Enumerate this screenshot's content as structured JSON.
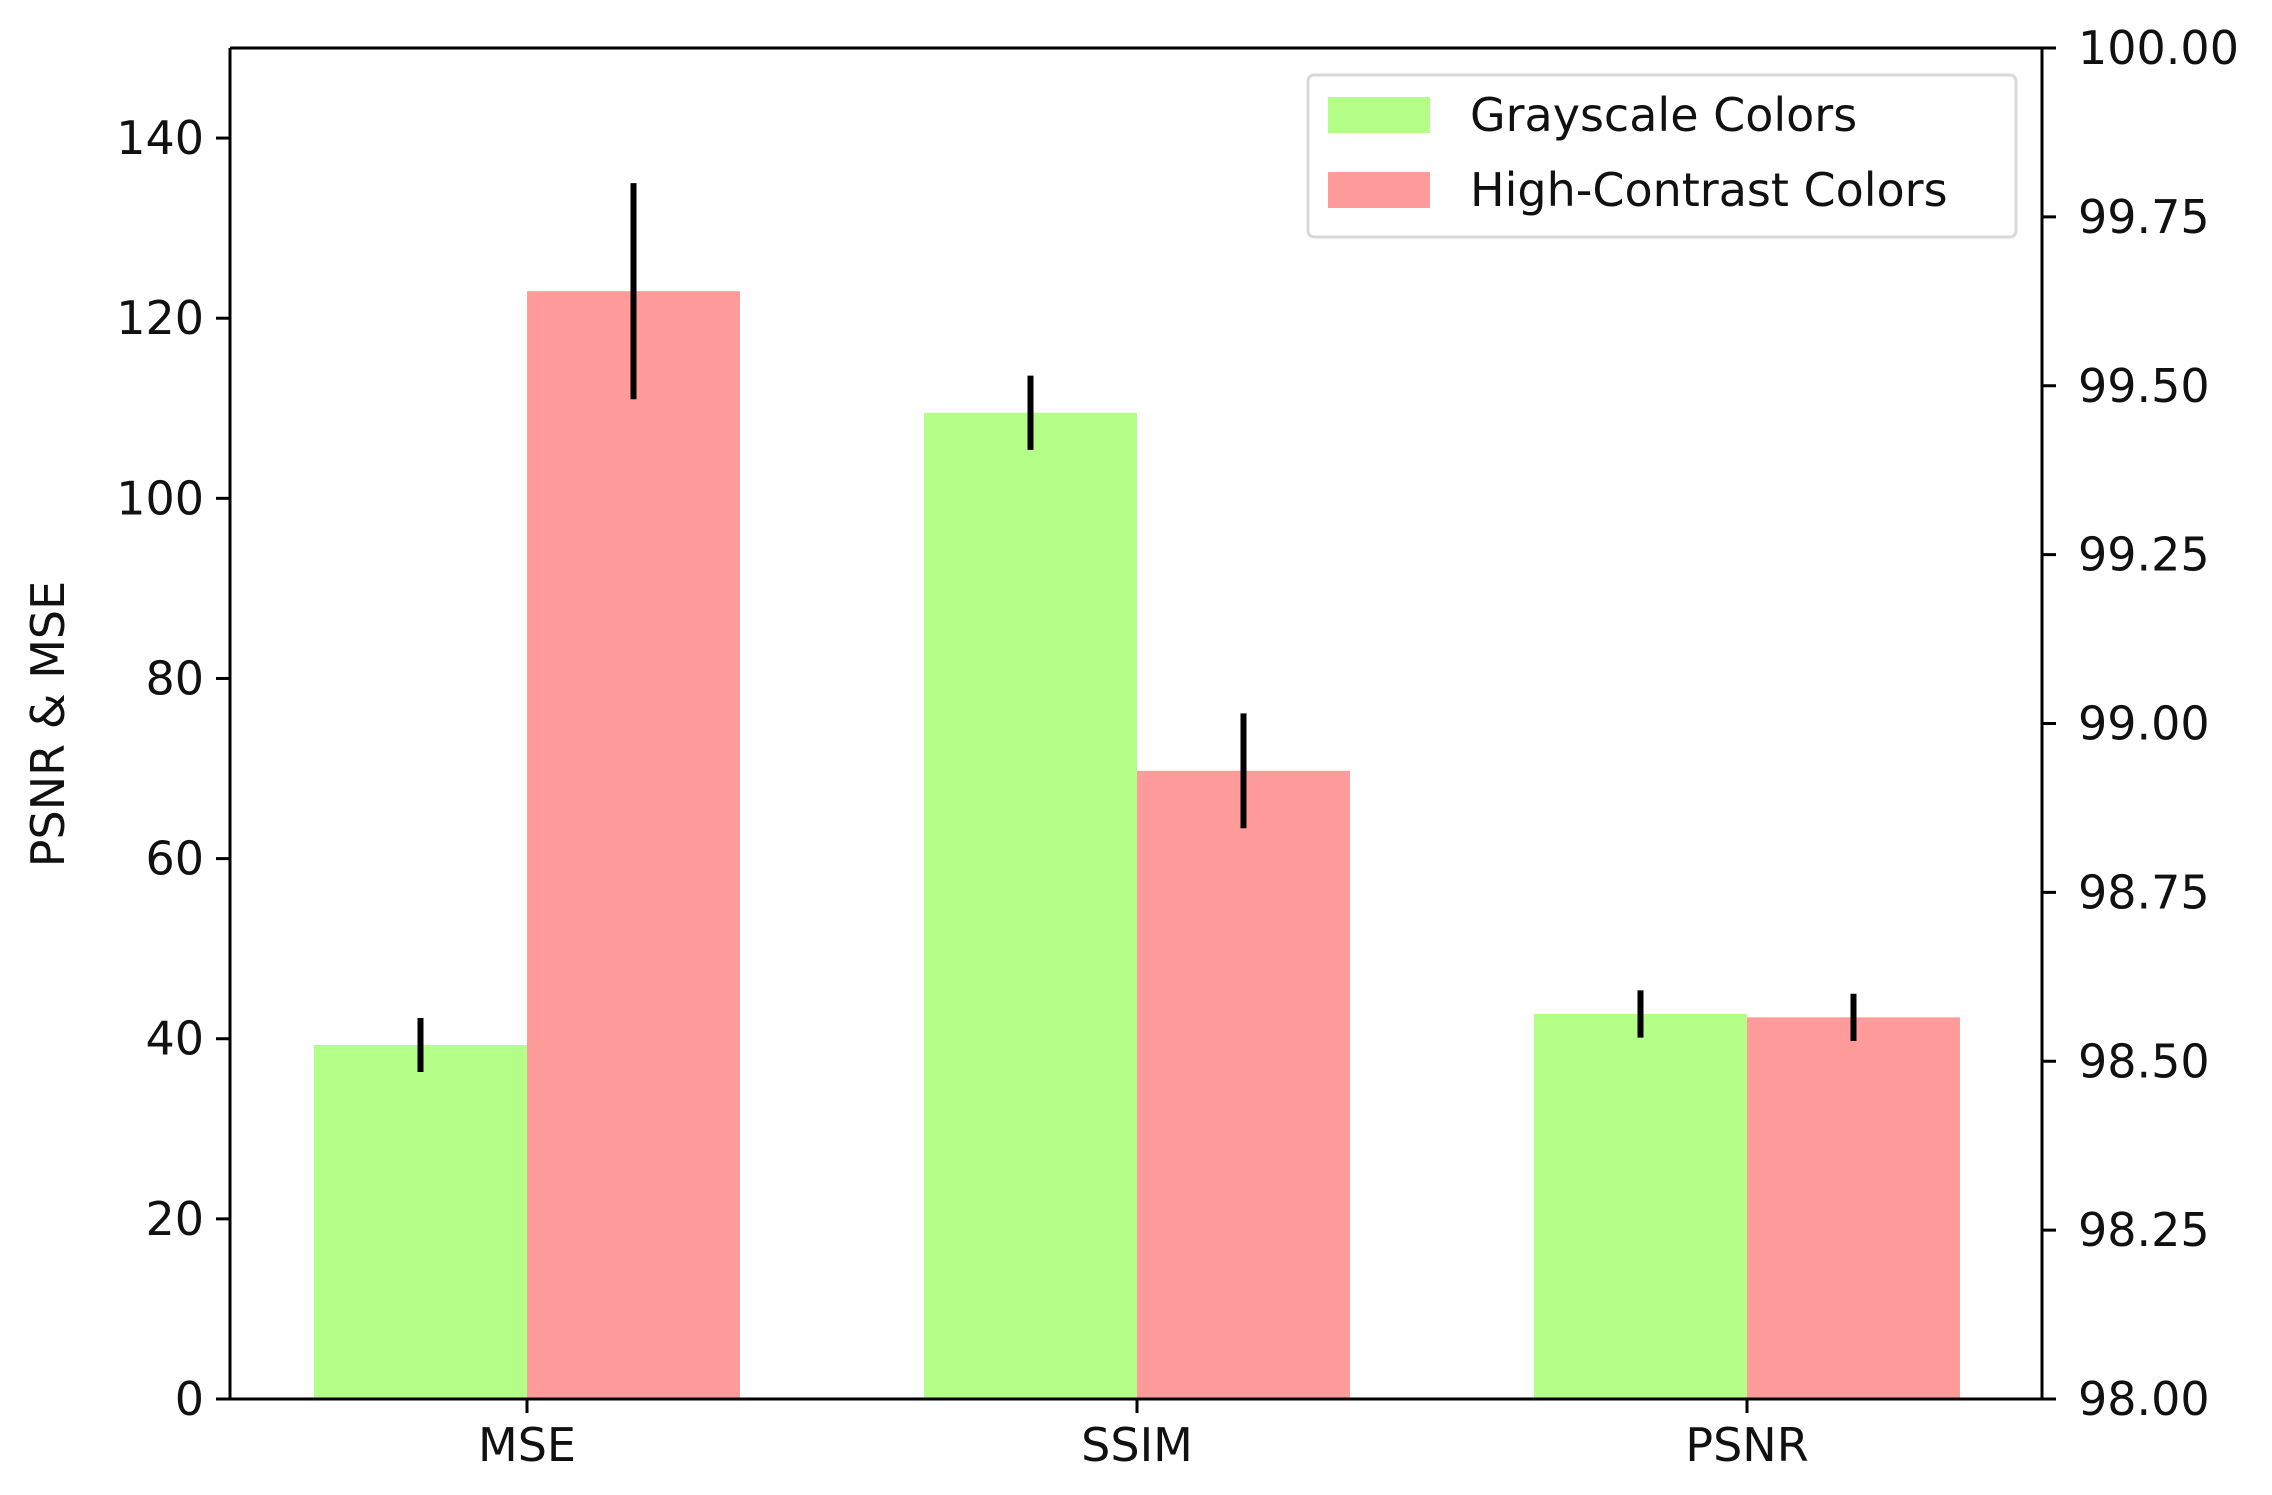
{
  "chart_data": {
    "type": "bar",
    "categories": [
      "MSE",
      "SSIM",
      "PSNR"
    ],
    "series": [
      {
        "name": "Grayscale Colors",
        "color": "#b3ff88",
        "values": [
          39.3,
          99.46,
          98.57
        ],
        "errors": [
          3.0,
          0.055,
          0.035
        ]
      },
      {
        "name": "High-Contrast Colors",
        "color": "#ff9b9b",
        "values": [
          123.0,
          98.93,
          98.565
        ],
        "errors": [
          12.0,
          0.085,
          0.035
        ]
      }
    ],
    "axis_for_category": [
      "left",
      "right",
      "right"
    ],
    "ylabel": "PSNR & MSE",
    "ylim": [
      0,
      150
    ],
    "yticks": [
      "0",
      "20",
      "40",
      "60",
      "80",
      "100",
      "120",
      "140"
    ],
    "y2lim": [
      98.0,
      100.0
    ],
    "y2ticks": [
      "98.00",
      "98.25",
      "98.50",
      "98.75",
      "99.00",
      "99.25",
      "99.50",
      "99.75",
      "100.00"
    ],
    "legend_position": "top-right",
    "grid": false
  }
}
